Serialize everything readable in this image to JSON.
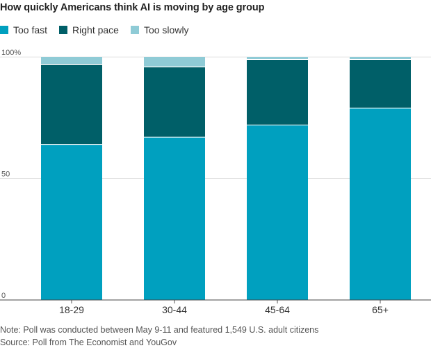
{
  "title": "How quickly Americans think AI is moving by age group",
  "legend": [
    {
      "label": "Too fast",
      "color": "#00a0bf"
    },
    {
      "label": "Right pace",
      "color": "#005f68"
    },
    {
      "label": "Too slowly",
      "color": "#8fcbd6"
    }
  ],
  "chart_data": {
    "type": "bar",
    "stacked": true,
    "categories": [
      "18-29",
      "30-44",
      "45-64",
      "65+"
    ],
    "series": [
      {
        "name": "Too fast",
        "color": "#00a0bf",
        "values": [
          64,
          67,
          72,
          79
        ]
      },
      {
        "name": "Right pace",
        "color": "#005f68",
        "values": [
          33,
          29,
          27,
          20
        ]
      },
      {
        "name": "Too slowly",
        "color": "#8fcbd6",
        "values": [
          3,
          4,
          1,
          1
        ]
      }
    ],
    "ylim": [
      0,
      100
    ],
    "yticks": [
      {
        "value": 0,
        "label": "0"
      },
      {
        "value": 50,
        "label": "50"
      },
      {
        "value": 100,
        "label": "100%"
      }
    ],
    "grid": true,
    "legend_position": "top-left"
  },
  "footer": {
    "note": "Note: Poll was conducted between May 9-11 and featured 1,549 U.S. adult citizens",
    "source": "Source: Poll from The Economist and YouGov"
  }
}
